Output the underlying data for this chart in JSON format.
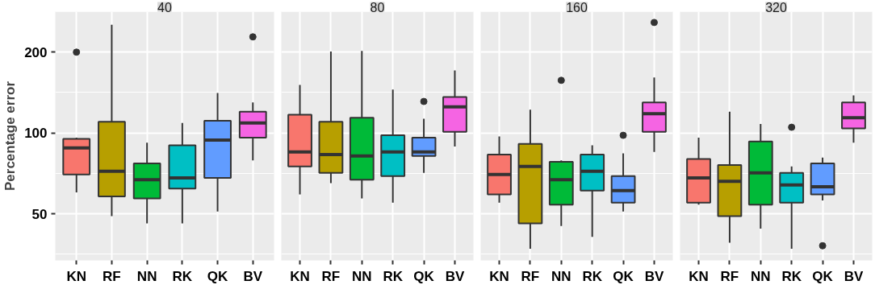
{
  "chart_data": [
    {
      "type": "box",
      "title": "40",
      "ylabel": "Percentage error",
      "categories": [
        "KN",
        "RF",
        "NN",
        "RK",
        "QK",
        "BV"
      ],
      "colors": [
        "#f8766d",
        "#b79f00",
        "#00ba38",
        "#00bfc4",
        "#619cff",
        "#f564e3"
      ],
      "log": true,
      "ylim": [
        33.5,
        283
      ],
      "yticks": [
        50,
        100,
        200
      ],
      "grid": true,
      "boxes": [
        {
          "low": 60,
          "q1": 70,
          "median": 88,
          "q3": 95,
          "high": 96,
          "outliers": [
            200
          ]
        },
        {
          "low": 49,
          "q1": 58,
          "median": 72,
          "q3": 110,
          "high": 253
        },
        {
          "low": 46,
          "q1": 57,
          "median": 67,
          "q3": 77,
          "high": 92
        },
        {
          "low": 46,
          "q1": 62,
          "median": 68,
          "q3": 90,
          "high": 109
        },
        {
          "low": 51,
          "q1": 68,
          "median": 94,
          "q3": 111,
          "high": 141
        },
        {
          "low": 79,
          "q1": 96,
          "median": 109,
          "q3": 120,
          "high": 130,
          "outliers": [
            228
          ]
        }
      ]
    },
    {
      "type": "box",
      "title": "80",
      "categories": [
        "KN",
        "RF",
        "NN",
        "RK",
        "QK",
        "BV"
      ],
      "colors": [
        "#f8766d",
        "#b79f00",
        "#00ba38",
        "#00bfc4",
        "#619cff",
        "#f564e3"
      ],
      "log": true,
      "ylim": [
        33.5,
        283
      ],
      "yticks": [
        50,
        100,
        200
      ],
      "grid": true,
      "tick_labels": "x",
      "boxes": [
        {
          "low": 59,
          "q1": 75,
          "median": 85,
          "q3": 117,
          "high": 151
        },
        {
          "low": 65,
          "q1": 71,
          "median": 83,
          "q3": 110,
          "high": 201
        },
        {
          "low": 57,
          "q1": 67,
          "median": 82,
          "q3": 114,
          "high": 202
        },
        {
          "low": 55,
          "q1": 69,
          "median": 85,
          "q3": 98,
          "high": 145
        },
        {
          "low": 71,
          "q1": 82,
          "median": 85,
          "q3": 96,
          "high": 113,
          "outliers": [
            131
          ]
        },
        {
          "low": 89,
          "q1": 101,
          "median": 125,
          "q3": 136,
          "high": 171
        }
      ]
    },
    {
      "type": "box",
      "title": "160",
      "categories": [
        "KN",
        "RF",
        "NN",
        "RK",
        "QK",
        "BV"
      ],
      "colors": [
        "#f8766d",
        "#b79f00",
        "#00ba38",
        "#00bfc4",
        "#619cff",
        "#f564e3"
      ],
      "log": true,
      "ylim": [
        33.5,
        283
      ],
      "yticks": [
        50,
        100,
        200
      ],
      "grid": true,
      "tick_labels": "x",
      "boxes": [
        {
          "low": 55,
          "q1": 59,
          "median": 70,
          "q3": 83,
          "high": 97
        },
        {
          "low": 37,
          "q1": 46,
          "median": 75,
          "q3": 91,
          "high": 122
        },
        {
          "low": 45,
          "q1": 54,
          "median": 67,
          "q3": 78,
          "high": 79,
          "outliers": [
            157
          ]
        },
        {
          "low": 41,
          "q1": 61,
          "median": 72,
          "q3": 83,
          "high": 90
        },
        {
          "low": 51,
          "q1": 55,
          "median": 61,
          "q3": 69,
          "high": 84,
          "outliers": [
            98
          ]
        },
        {
          "low": 85,
          "q1": 101,
          "median": 118,
          "q3": 130,
          "high": 161,
          "outliers": [
            258
          ]
        }
      ]
    },
    {
      "type": "box",
      "title": "320",
      "categories": [
        "KN",
        "RF",
        "NN",
        "RK",
        "QK",
        "BV"
      ],
      "colors": [
        "#f8766d",
        "#b79f00",
        "#00ba38",
        "#00bfc4",
        "#619cff",
        "#f564e3"
      ],
      "log": true,
      "ylim": [
        33.5,
        283
      ],
      "yticks": [
        50,
        100,
        200
      ],
      "grid": true,
      "tick_labels": "x",
      "boxes": [
        {
          "low": 54,
          "q1": 55,
          "median": 68,
          "q3": 80,
          "high": 96
        },
        {
          "low": 39,
          "q1": 49,
          "median": 66,
          "q3": 76,
          "high": 120
        },
        {
          "low": 44,
          "q1": 54,
          "median": 71,
          "q3": 93,
          "high": 108
        },
        {
          "low": 37,
          "q1": 55,
          "median": 64,
          "q3": 71,
          "high": 75,
          "outliers": [
            105
          ]
        },
        {
          "low": 56,
          "q1": 59,
          "median": 63,
          "q3": 77,
          "high": 81,
          "outliers": [
            38
          ]
        },
        {
          "low": 92,
          "q1": 104,
          "median": 114,
          "q3": 130,
          "high": 138
        }
      ]
    }
  ]
}
